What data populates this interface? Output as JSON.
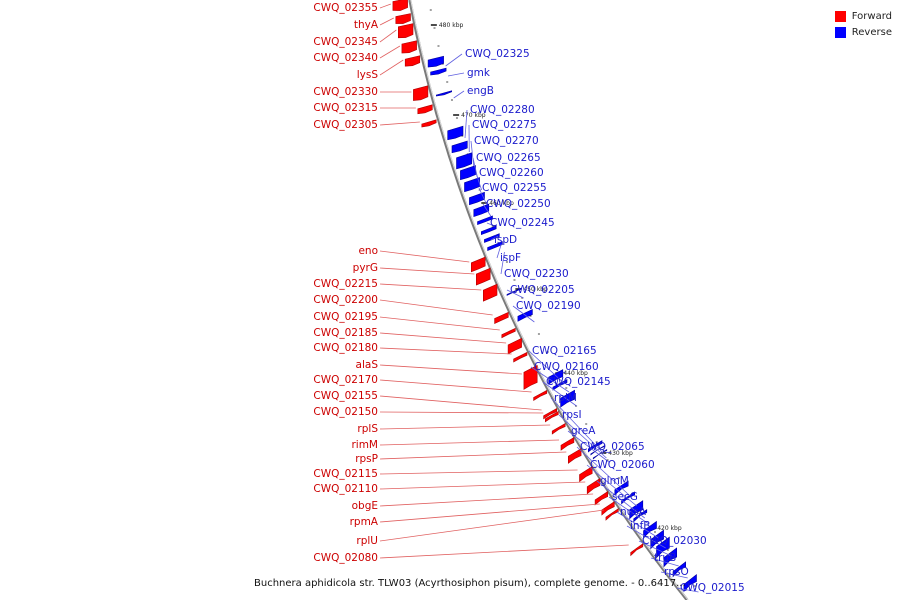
{
  "legend": {
    "forward_label": "Forward",
    "reverse_label": "Reverse",
    "forward_color": "#ff0000",
    "reverse_color": "#0000ff"
  },
  "caption": "Buchnera aphidicola str. TLW03 (Acyrthosiphon pisum), complete genome. - 0..6417...",
  "backbone_color": "#7a7a7a",
  "label_line_forward": "#e06060",
  "label_line_reverse": "#6060e0",
  "kbp_marks": [
    "480 kbp",
    "470 kbp",
    "460 kbp",
    "450 kbp",
    "440 kbp",
    "430 kbp",
    "420 kbp"
  ],
  "forward_genes": [
    "CWQ_02355",
    "thyA",
    "CWQ_02345",
    "CWQ_02340",
    "lysS",
    "CWQ_02330",
    "CWQ_02315",
    "CWQ_02305",
    "eno",
    "pyrG",
    "CWQ_02215",
    "CWQ_02200",
    "CWQ_02195",
    "CWQ_02185",
    "CWQ_02180",
    "alaS",
    "CWQ_02170",
    "CWQ_02155",
    "CWQ_02150",
    "rplS",
    "rimM",
    "rpsP",
    "CWQ_02115",
    "CWQ_02110",
    "obgE",
    "rpmA",
    "rplU",
    "CWQ_02080"
  ],
  "reverse_genes": [
    "CWQ_02325",
    "gmk",
    "engB",
    "CWQ_02280",
    "CWQ_02275",
    "CWQ_02270",
    "CWQ_02265",
    "CWQ_02260",
    "CWQ_02255",
    "CWQ_02250",
    "CWQ_02245",
    "ispD",
    "ispF",
    "CWQ_02230",
    "CWQ_02205",
    "CWQ_02190",
    "CWQ_02165",
    "CWQ_02160",
    "CWQ_02145",
    "rplM",
    "rpsI",
    "greA",
    "CWQ_02065",
    "CWQ_02060",
    "glmM",
    "secG",
    "nusA",
    "infB",
    "CWQ_02030",
    "truB",
    "rpsO",
    "CWQ_02015"
  ]
}
